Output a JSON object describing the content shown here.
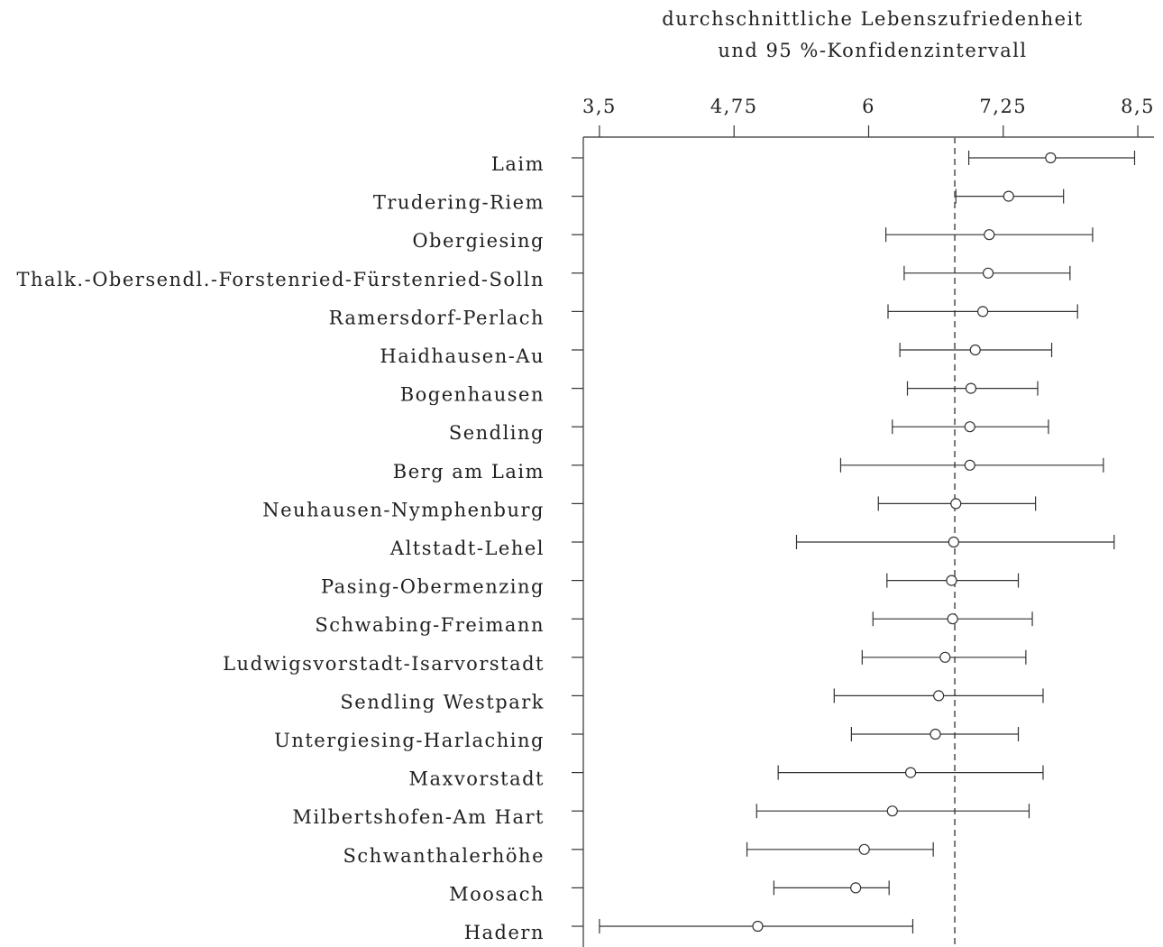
{
  "chart_data": {
    "type": "dot-errorbar",
    "title_line1": "durchschnittliche Lebenszufriedenheit",
    "title_line2": "und 95 %-Konfidenzintervall",
    "x_ticks": [
      3.5,
      4.75,
      6,
      7.25,
      8.5
    ],
    "x_tick_labels": [
      "3,5",
      "4,75",
      "6",
      "7,25",
      "8,5"
    ],
    "xlim": [
      3.35,
      8.65
    ],
    "reference_line": 6.8,
    "categories": [
      "Laim",
      "Trudering-Riem",
      "Obergiesing",
      "Thalk.-Obersendl.-Forstenried-Fürstenried-Solln",
      "Ramersdorf-Perlach",
      "Haidhausen-Au",
      "Bogenhausen",
      "Sendling",
      "Berg am Laim",
      "Neuhausen-Nymphenburg",
      "Altstadt-Lehel",
      "Pasing-Obermenzing",
      "Schwabing-Freimann",
      "Ludwigsvorstadt-Isarvorstadt",
      "Sendling Westpark",
      "Untergiesing-Harlaching",
      "Maxvorstadt",
      "Milbertshofen-Am Hart",
      "Schwanthalerhöhe",
      "Moosach",
      "Hadern"
    ],
    "mean": [
      7.69,
      7.3,
      7.12,
      7.11,
      7.06,
      6.99,
      6.95,
      6.94,
      6.94,
      6.81,
      6.79,
      6.77,
      6.78,
      6.71,
      6.65,
      6.62,
      6.39,
      6.22,
      5.96,
      5.88,
      4.97
    ],
    "lower": [
      6.93,
      6.81,
      6.16,
      6.33,
      6.18,
      6.29,
      6.36,
      6.22,
      5.74,
      6.09,
      5.33,
      6.17,
      6.04,
      5.94,
      5.68,
      5.84,
      5.16,
      4.96,
      4.87,
      5.12,
      3.5
    ],
    "upper": [
      8.47,
      7.81,
      8.08,
      7.87,
      7.94,
      7.7,
      7.57,
      7.67,
      8.18,
      7.55,
      8.28,
      7.39,
      7.52,
      7.46,
      7.62,
      7.39,
      7.62,
      7.49,
      6.6,
      6.19,
      6.41
    ]
  }
}
